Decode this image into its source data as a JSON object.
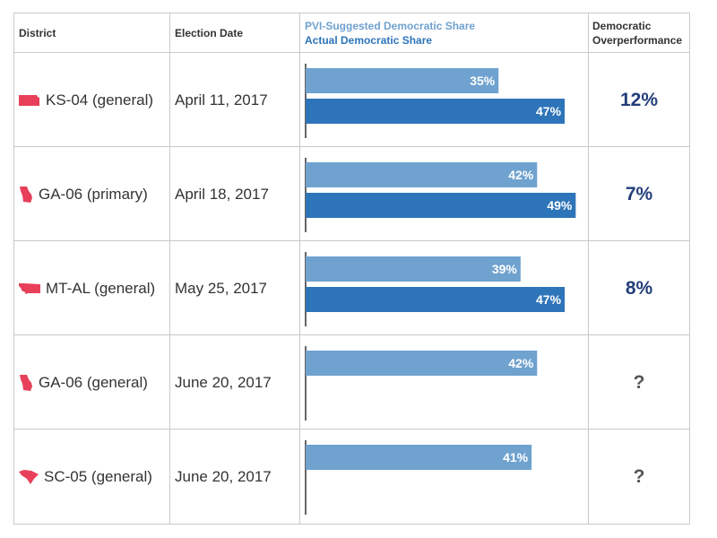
{
  "headers": {
    "district": "District",
    "date": "Election Date",
    "pvi_legend": "PVI-Suggested Democratic Share",
    "actual_legend": "Actual Democratic Share",
    "over_line1": "Democratic",
    "over_line2": "Overperformance"
  },
  "colors": {
    "pvi": "#6fa2cf",
    "actual": "#2e74b9",
    "state_icon": "#e8405a",
    "overperformance_text": "#233e7a"
  },
  "rows": [
    {
      "district": "KS-04 (general)",
      "date": "April 11, 2017",
      "icon": "kansas-state-icon",
      "overperformance": "12%"
    },
    {
      "district": "GA-06 (primary)",
      "date": "April 18, 2017",
      "icon": "georgia-state-icon",
      "overperformance": "7%"
    },
    {
      "district": "MT-AL (general)",
      "date": "May 25, 2017",
      "icon": "montana-state-icon",
      "overperformance": "8%"
    },
    {
      "district": "GA-06 (general)",
      "date": "June 20, 2017",
      "icon": "georgia-state-icon",
      "overperformance": "?"
    },
    {
      "district": "SC-05 (general)",
      "date": "June 20, 2017",
      "icon": "south-carolina-state-icon",
      "overperformance": "?"
    }
  ],
  "chart_data": {
    "type": "bar",
    "orientation": "horizontal",
    "categories": [
      "KS-04 (general)",
      "GA-06 (primary)",
      "MT-AL (general)",
      "GA-06 (general)",
      "SC-05 (general)"
    ],
    "series": [
      {
        "name": "PVI-Suggested Democratic Share",
        "values": [
          35,
          42,
          39,
          42,
          41
        ],
        "labels": [
          "35%",
          "42%",
          "39%",
          "42%",
          "41%"
        ]
      },
      {
        "name": "Actual Democratic Share",
        "values": [
          47,
          49,
          47,
          null,
          null
        ],
        "labels": [
          "47%",
          "49%",
          "47%",
          null,
          null
        ]
      }
    ],
    "unit": "%",
    "grid": false,
    "legend": "header"
  }
}
